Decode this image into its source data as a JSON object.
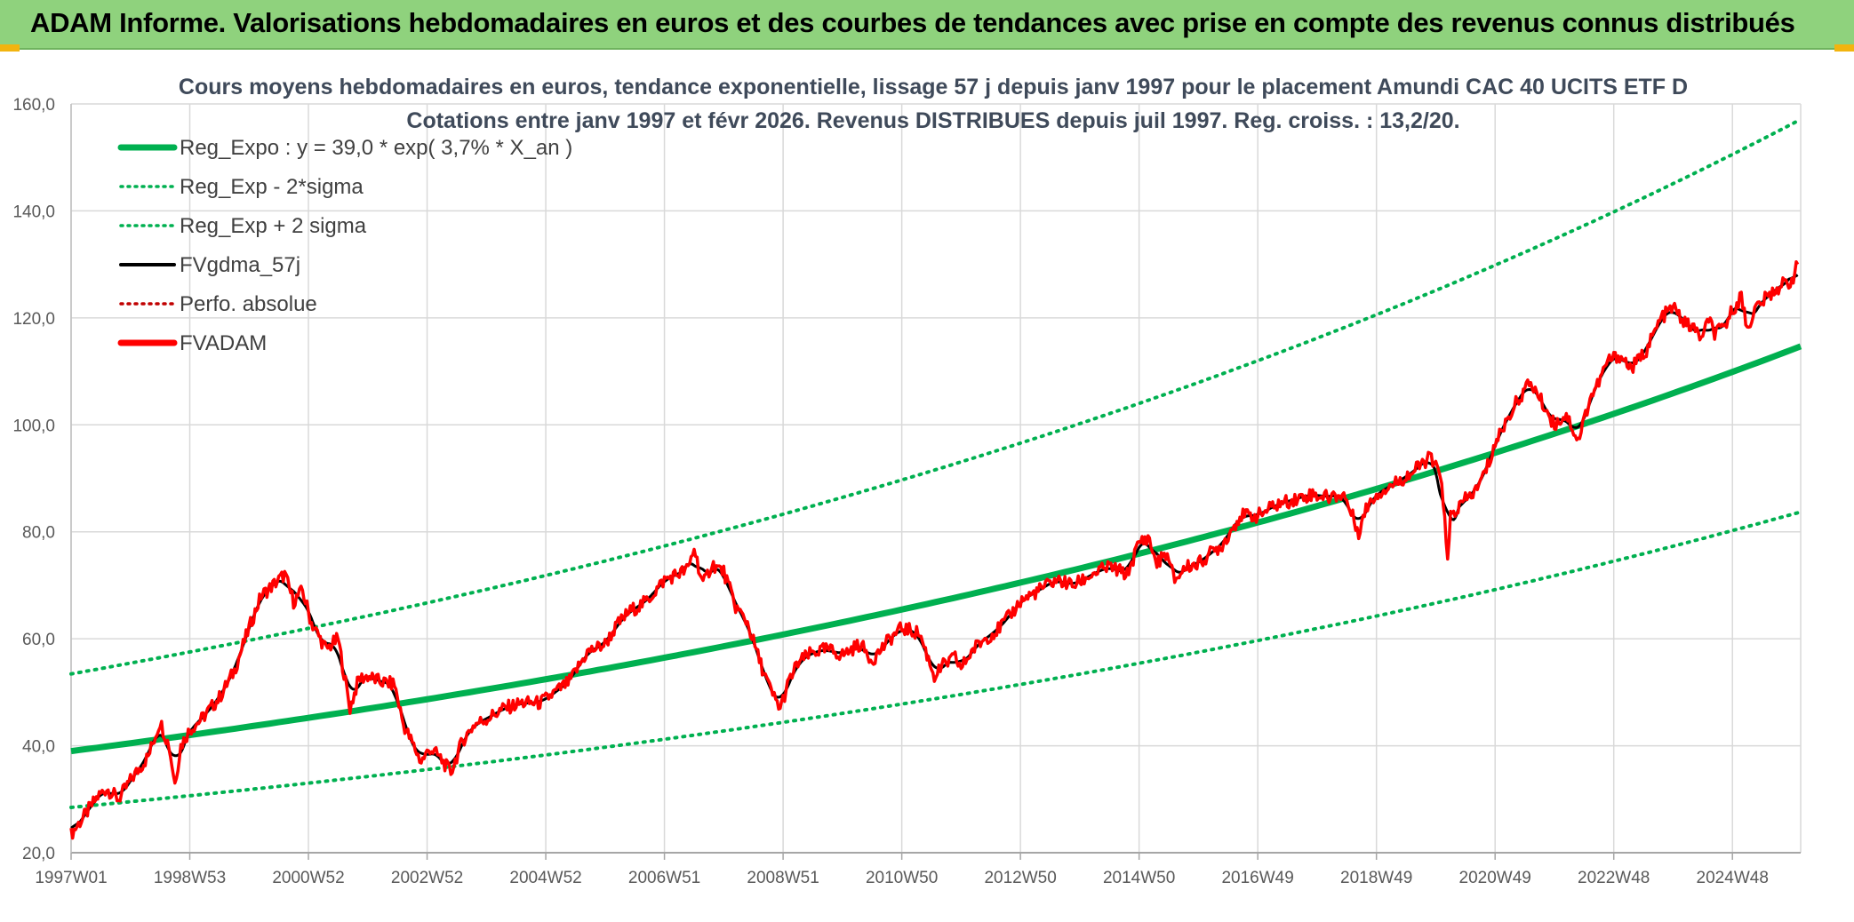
{
  "header": {
    "title": "ADAM Informe. Valorisations hebdomadaires en euros et des courbes de tendances avec prise en compte des revenus connus distribués"
  },
  "colors": {
    "banner": "#8fd27d",
    "trend": "#00b050",
    "fv": "#000000",
    "adam": "#ff0000",
    "perf": "#c00000",
    "grid": "#d9d9d9"
  },
  "chart_data": {
    "type": "line",
    "title_lines": [
      "Cours moyens hebdomadaires en euros, tendance exponentielle, lissage 57 j depuis janv 1997 pour le placement Amundi CAC 40 UCITS ETF D",
      "Cotations entre janv 1997 et févr 2026. Revenus DISTRIBUES depuis juil 1997. Reg. croiss. : 13,2/20."
    ],
    "x_range": [
      1997.0,
      2026.15
    ],
    "ylim": [
      20,
      160
    ],
    "y_ticks": [
      20,
      40,
      60,
      80,
      100,
      120,
      140,
      160
    ],
    "y_tick_labels": [
      "20,0",
      "40,0",
      "60,0",
      "80,0",
      "100,0",
      "120,0",
      "140,0",
      "160,0"
    ],
    "x_ticks": [
      {
        "label": "1997W01",
        "x": 1997.0
      },
      {
        "label": "1998W53",
        "x": 1999.0
      },
      {
        "label": "2000W52",
        "x": 2001.0
      },
      {
        "label": "2002W52",
        "x": 2003.0
      },
      {
        "label": "2004W52",
        "x": 2005.0
      },
      {
        "label": "2006W51",
        "x": 2007.0
      },
      {
        "label": "2008W51",
        "x": 2009.0
      },
      {
        "label": "2010W50",
        "x": 2011.0
      },
      {
        "label": "2012W50",
        "x": 2013.0
      },
      {
        "label": "2014W50",
        "x": 2015.0
      },
      {
        "label": "2016W49",
        "x": 2017.0
      },
      {
        "label": "2018W49",
        "x": 2019.0
      },
      {
        "label": "2020W49",
        "x": 2021.0
      },
      {
        "label": "2022W48",
        "x": 2023.0
      },
      {
        "label": "2024W48",
        "x": 2025.0
      }
    ],
    "grid": true,
    "legend_position": "top-left",
    "legend": [
      {
        "label": "Reg_Expo : y = 39,0 * exp( 3,7% *  X_an )",
        "style": "solid-thick",
        "color": "#00b050"
      },
      {
        "label": "Reg_Exp - 2*sigma",
        "style": "dotted",
        "color": "#00b050"
      },
      {
        "label": "Reg_Exp + 2 sigma",
        "style": "dotted",
        "color": "#00b050"
      },
      {
        "label": "FVgdma_57j",
        "style": "solid",
        "color": "#000000"
      },
      {
        "label": "Perfo. absolue",
        "style": "dotted",
        "color": "#c00000"
      },
      {
        "label": "FVADAM",
        "style": "solid-thick",
        "color": "#ff0000"
      }
    ],
    "regression": {
      "a": 39.0,
      "rate": 0.037,
      "lower_factor": 0.73,
      "upper_factor": 1.37
    },
    "series": [
      {
        "name": "FVADAM",
        "x": [
          1997.0,
          1997.2,
          1997.45,
          1997.6,
          1997.8,
          1998.0,
          1998.3,
          1998.5,
          1998.65,
          1998.75,
          1998.85,
          1999.0,
          1999.2,
          1999.5,
          1999.75,
          2000.0,
          2000.2,
          2000.4,
          2000.6,
          2000.75,
          2000.9,
          2001.05,
          2001.3,
          2001.5,
          2001.7,
          2001.85,
          2002.0,
          2002.2,
          2002.45,
          2002.6,
          2002.75,
          2002.9,
          2003.05,
          2003.2,
          2003.4,
          2003.6,
          2003.8,
          2004.0,
          2004.3,
          2004.6,
          2004.9,
          2005.1,
          2005.4,
          2005.7,
          2006.0,
          2006.2,
          2006.4,
          2006.7,
          2007.0,
          2007.2,
          2007.4,
          2007.5,
          2007.65,
          2007.8,
          2008.0,
          2008.2,
          2008.4,
          2008.6,
          2008.8,
          2008.95,
          2009.1,
          2009.25,
          2009.5,
          2009.75,
          2010.0,
          2010.3,
          2010.5,
          2010.8,
          2011.0,
          2011.3,
          2011.55,
          2011.7,
          2011.9,
          2012.0,
          2012.2,
          2012.4,
          2012.6,
          2012.8,
          2013.0,
          2013.3,
          2013.6,
          2013.9,
          2014.2,
          2014.5,
          2014.8,
          2015.0,
          2015.15,
          2015.3,
          2015.45,
          2015.6,
          2015.8,
          2016.0,
          2016.2,
          2016.4,
          2016.7,
          2017.0,
          2017.3,
          2017.6,
          2017.9,
          2018.2,
          2018.45,
          2018.7,
          2018.85,
          2019.0,
          2019.3,
          2019.6,
          2019.9,
          2020.1,
          2020.2,
          2020.25,
          2020.35,
          2020.5,
          2020.7,
          2020.9,
          2021.0,
          2021.2,
          2021.4,
          2021.6,
          2021.85,
          2022.0,
          2022.2,
          2022.4,
          2022.6,
          2022.75,
          2022.9,
          2023.1,
          2023.3,
          2023.55,
          2023.8,
          2024.0,
          2024.2,
          2024.35,
          2024.5,
          2024.6,
          2024.7,
          2024.85,
          2025.0,
          2025.15,
          2025.25,
          2025.4,
          2025.6,
          2025.8,
          2026.0,
          2026.1
        ],
        "values": [
          23.5,
          26.5,
          30.5,
          32.0,
          30.0,
          33.5,
          38.0,
          44.5,
          40.0,
          33.0,
          40.0,
          43.0,
          45.0,
          49.0,
          54.0,
          62.0,
          68.0,
          70.0,
          72.0,
          67.0,
          69.0,
          63.0,
          58.0,
          60.0,
          47.0,
          52.5,
          53.0,
          52.0,
          51.5,
          44.0,
          40.5,
          37.0,
          39.5,
          38.0,
          35.0,
          41.0,
          44.0,
          45.0,
          47.0,
          48.0,
          48.0,
          49.5,
          52.0,
          57.5,
          59.0,
          62.5,
          65.0,
          67.0,
          71.0,
          72.0,
          73.0,
          77.0,
          70.0,
          74.0,
          72.5,
          66.0,
          63.0,
          56.0,
          50.0,
          47.0,
          52.0,
          55.5,
          57.5,
          58.0,
          57.0,
          59.0,
          56.0,
          60.0,
          62.0,
          61.0,
          53.0,
          55.0,
          56.5,
          54.5,
          58.0,
          60.0,
          61.5,
          64.0,
          67.0,
          69.0,
          71.0,
          70.0,
          72.0,
          73.5,
          72.0,
          78.0,
          79.0,
          74.0,
          76.0,
          71.0,
          73.5,
          74.0,
          76.0,
          77.5,
          83.0,
          83.0,
          85.0,
          86.0,
          87.0,
          86.5,
          87.0,
          80.0,
          85.0,
          87.0,
          89.0,
          91.0,
          94.0,
          90.0,
          74.0,
          83.0,
          84.0,
          86.0,
          88.0,
          93.0,
          96.5,
          101.0,
          105.0,
          108.0,
          103.0,
          100.0,
          102.0,
          97.0,
          105.0,
          108.0,
          112.0,
          113.0,
          110.5,
          114.0,
          120.0,
          122.0,
          119.0,
          118.0,
          116.0,
          120.0,
          117.0,
          118.0,
          121.5,
          124.0,
          118.0,
          122.0,
          124.0,
          126.0,
          127.0,
          130.0
        ]
      }
    ]
  }
}
